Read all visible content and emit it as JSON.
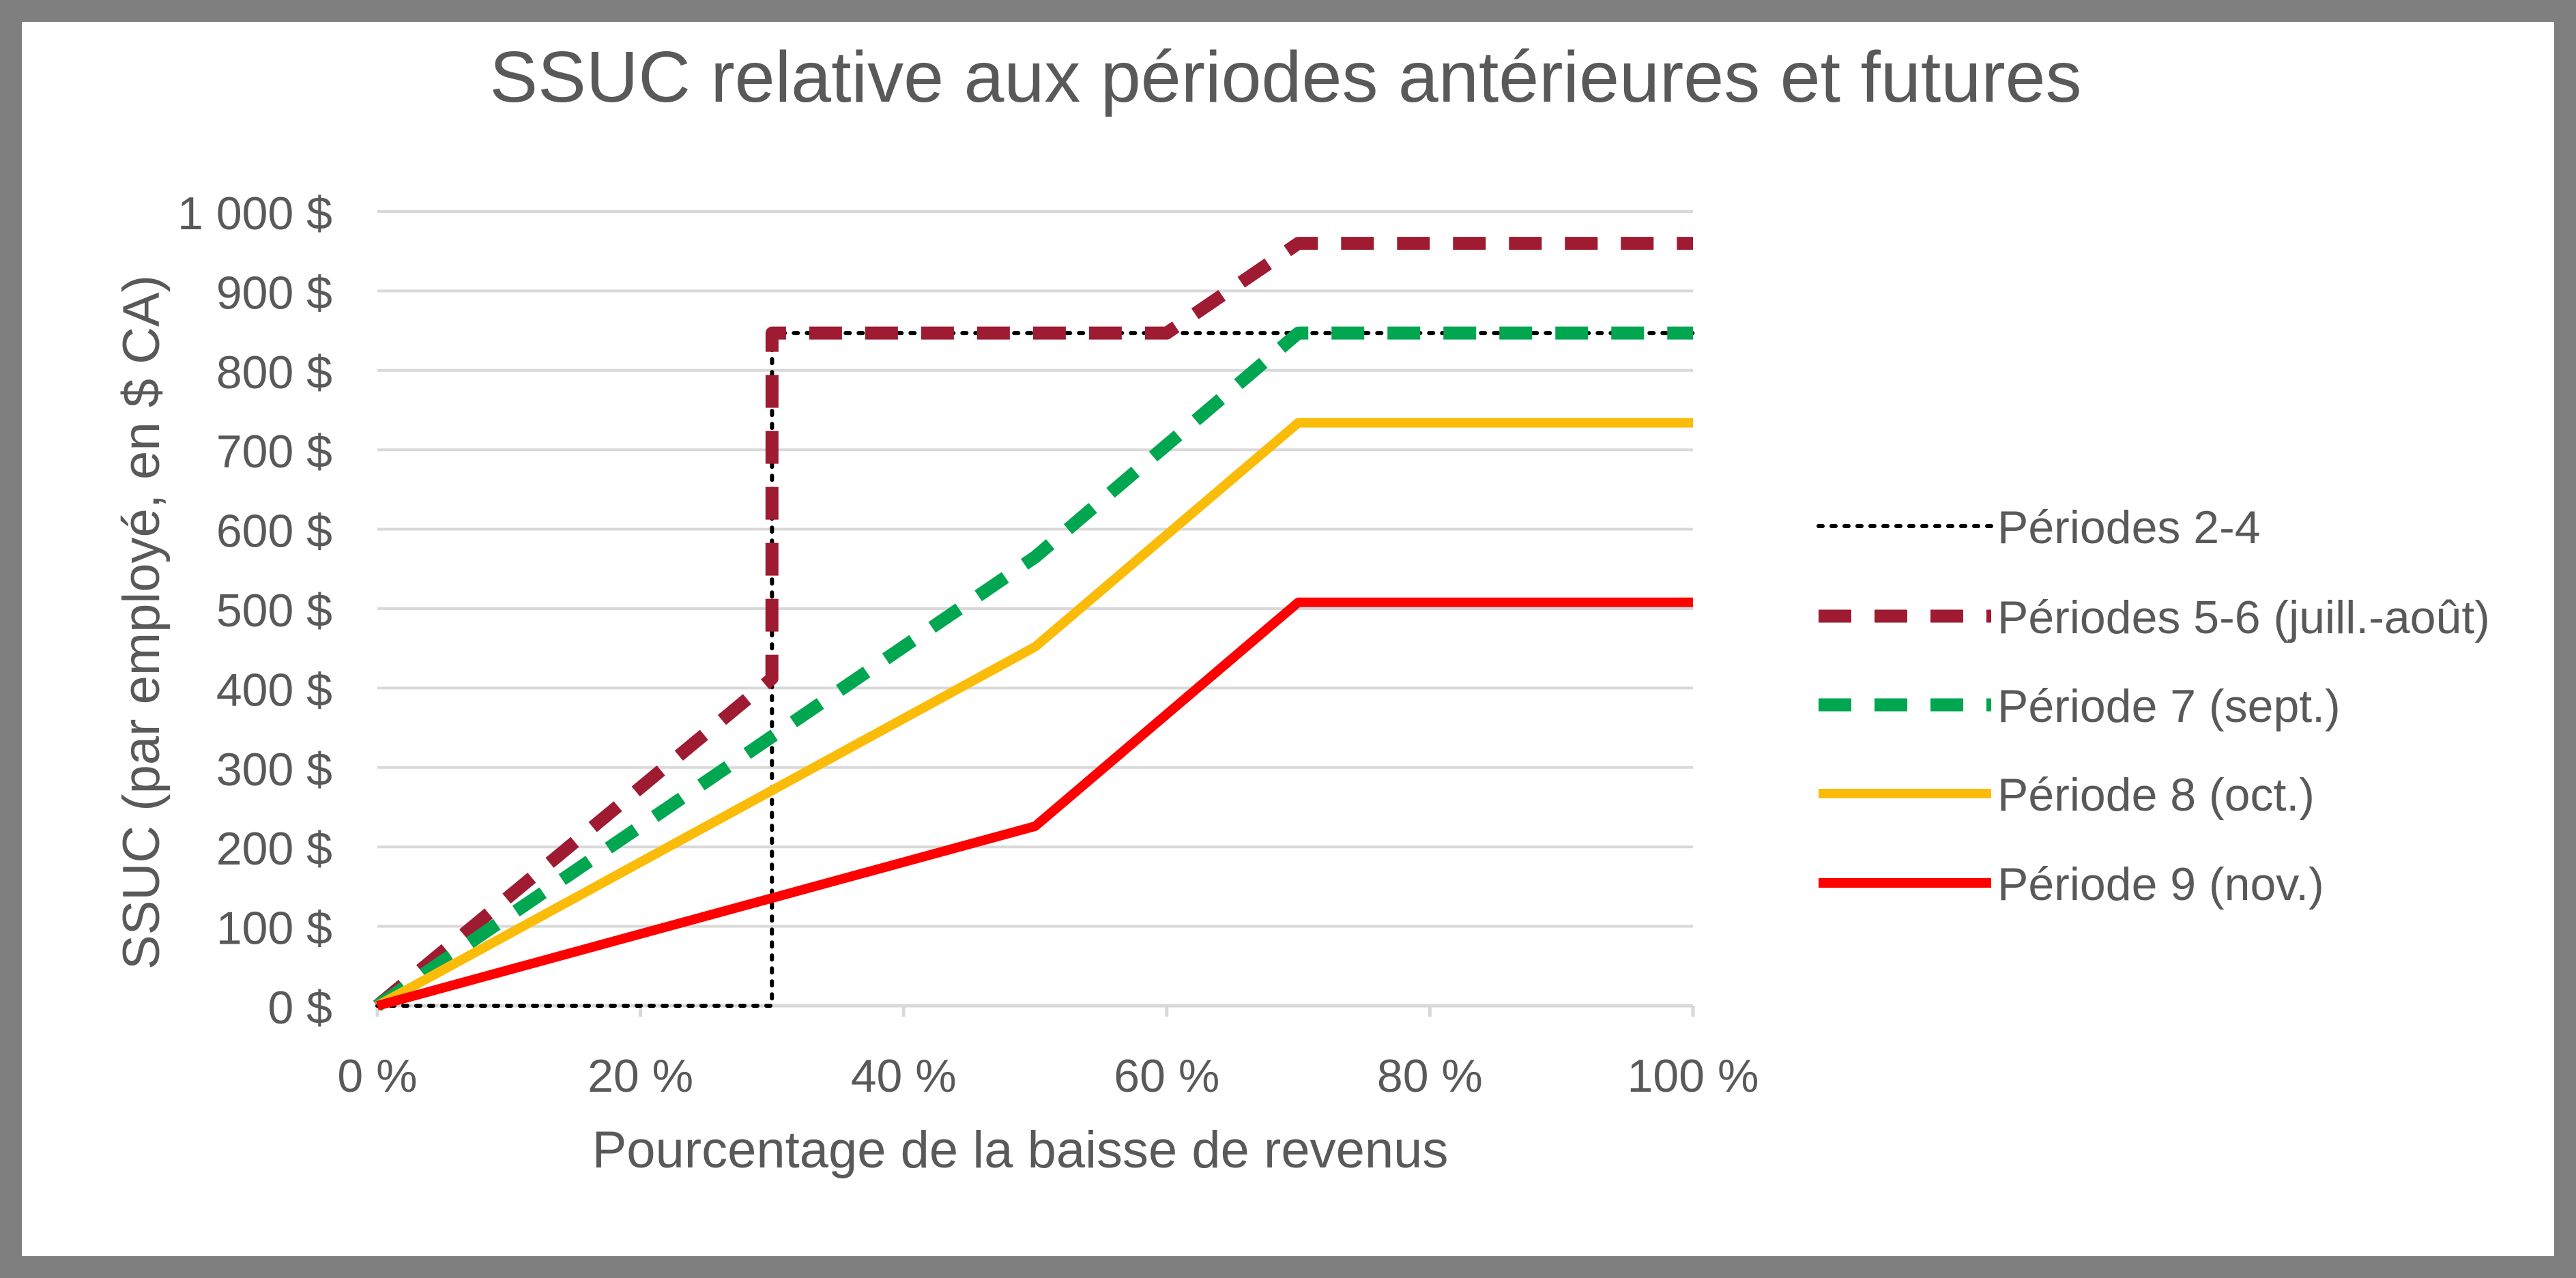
{
  "chart_data": {
    "type": "line",
    "title": "SSUC relative aux périodes antérieures et futures",
    "xlabel": "Pourcentage de la baisse de revenus",
    "ylabel": "SSUC (par employé, en $ CA)",
    "xlim": [
      0,
      100
    ],
    "ylim": [
      0,
      1000
    ],
    "x_ticks": [
      0,
      20,
      40,
      60,
      80,
      100
    ],
    "x_tick_labels": [
      "0 %",
      "20 %",
      "40 %",
      "60 %",
      "80 %",
      "100 %"
    ],
    "y_ticks": [
      0,
      100,
      200,
      300,
      400,
      500,
      600,
      700,
      800,
      900,
      1000
    ],
    "y_tick_labels": [
      "0 $",
      "100 $",
      "200 $",
      "300 $",
      "400 $",
      "500 $",
      "600 $",
      "700 $",
      "800 $",
      "900 $",
      "1 000 $"
    ],
    "grid": true,
    "legend_position": "right",
    "series": [
      {
        "name": "Périodes 2-4",
        "style": "dotted",
        "color": "#000000",
        "points": [
          [
            0,
            0
          ],
          [
            29.99,
            0
          ],
          [
            30,
            847
          ],
          [
            70,
            847
          ],
          [
            100,
            847
          ]
        ]
      },
      {
        "name": "Périodes 5-6 (juill.-août)",
        "style": "dashed",
        "color": "#9e1b32",
        "points": [
          [
            0,
            0
          ],
          [
            29.99,
            412
          ],
          [
            30,
            847
          ],
          [
            60,
            847
          ],
          [
            70,
            960
          ],
          [
            100,
            960
          ]
        ]
      },
      {
        "name": "Période 7 (sept.)",
        "style": "dashed",
        "color": "#00a650",
        "points": [
          [
            0,
            0
          ],
          [
            50,
            565
          ],
          [
            70,
            847
          ],
          [
            100,
            847
          ]
        ]
      },
      {
        "name": "Période 8 (oct.)",
        "style": "solid",
        "color": "#fbbc09",
        "points": [
          [
            0,
            0
          ],
          [
            50,
            452
          ],
          [
            70,
            734
          ],
          [
            100,
            734
          ]
        ]
      },
      {
        "name": "Période 9 (nov.)",
        "style": "solid",
        "color": "#ff0000",
        "points": [
          [
            0,
            0
          ],
          [
            50,
            226
          ],
          [
            70,
            508
          ],
          [
            100,
            508
          ]
        ]
      }
    ]
  }
}
